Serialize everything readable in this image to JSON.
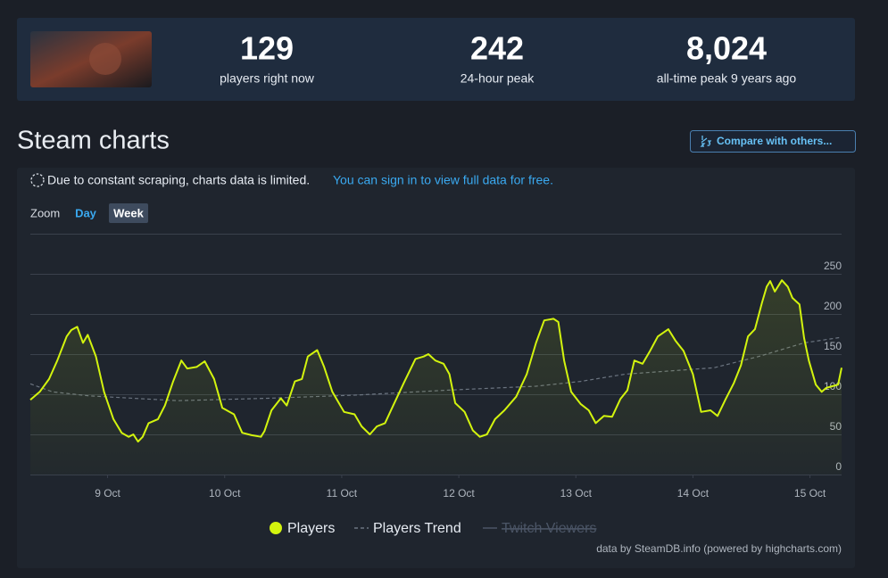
{
  "header": {
    "stats": [
      {
        "value": "129",
        "label": "players right now"
      },
      {
        "value": "242",
        "label": "24-hour peak"
      },
      {
        "value": "8,024",
        "label": "all-time peak 9 years ago"
      }
    ]
  },
  "section_title": "Steam charts",
  "compare_button": "Compare with others...",
  "notice": {
    "text": "Due to constant scraping, charts data is limited.",
    "link": "You can sign in to view full data for free."
  },
  "zoom": {
    "label": "Zoom",
    "options": [
      "Day",
      "Week"
    ],
    "active_index": 1
  },
  "credits": "data by SteamDB.info (powered by highcharts.com)",
  "chart_data": {
    "type": "line",
    "xlim": [
      8.34,
      15.27
    ],
    "ylim": [
      0,
      300
    ],
    "xticks": [
      {
        "value": 9,
        "label": "9 Oct"
      },
      {
        "value": 10,
        "label": "10 Oct"
      },
      {
        "value": 11,
        "label": "11 Oct"
      },
      {
        "value": 12,
        "label": "12 Oct"
      },
      {
        "value": 13,
        "label": "13 Oct"
      },
      {
        "value": 14,
        "label": "14 Oct"
      },
      {
        "value": 15,
        "label": "15 Oct"
      }
    ],
    "yticks": [
      0,
      50,
      100,
      150,
      200,
      250
    ],
    "grid": true,
    "series": [
      {
        "name": "Players",
        "color": "#d3f40e",
        "visible": true,
        "x": [
          8.34,
          8.42,
          8.5,
          8.57,
          8.65,
          8.69,
          8.74,
          8.79,
          8.83,
          8.9,
          8.97,
          9.05,
          9.12,
          9.18,
          9.22,
          9.26,
          9.3,
          9.35,
          9.43,
          9.49,
          9.56,
          9.63,
          9.68,
          9.76,
          9.83,
          9.91,
          9.98,
          10.08,
          10.15,
          10.23,
          10.31,
          10.34,
          10.4,
          10.48,
          10.53,
          10.6,
          10.66,
          10.71,
          10.79,
          10.85,
          10.92,
          11.02,
          11.11,
          11.17,
          11.24,
          11.3,
          11.37,
          11.44,
          11.53,
          11.63,
          11.7,
          11.74,
          11.8,
          11.87,
          11.92,
          11.97,
          12.05,
          12.12,
          12.18,
          12.24,
          12.31,
          12.39,
          12.49,
          12.58,
          12.66,
          12.73,
          12.81,
          12.85,
          12.9,
          12.96,
          13.04,
          13.11,
          13.17,
          13.24,
          13.31,
          13.38,
          13.44,
          13.5,
          13.57,
          13.63,
          13.7,
          13.79,
          13.85,
          13.92,
          14.0,
          14.07,
          14.15,
          14.21,
          14.28,
          14.35,
          14.41,
          14.47,
          14.53,
          14.59,
          14.63,
          14.66,
          14.7,
          14.76,
          14.81,
          14.85,
          14.91,
          14.95,
          14.99,
          15.05,
          15.1,
          15.14,
          15.19,
          15.24,
          15.27
        ],
        "values": [
          93,
          103,
          119,
          142,
          172,
          180,
          184,
          164,
          174,
          147,
          103,
          69,
          52,
          47,
          50,
          41,
          47,
          64,
          69,
          86,
          116,
          142,
          132,
          134,
          141,
          119,
          83,
          75,
          52,
          49,
          47,
          54,
          80,
          95,
          86,
          116,
          119,
          147,
          155,
          134,
          103,
          78,
          75,
          60,
          50,
          60,
          64,
          86,
          114,
          144,
          147,
          150,
          142,
          138,
          125,
          89,
          78,
          55,
          47,
          50,
          69,
          80,
          97,
          125,
          164,
          192,
          194,
          190,
          142,
          103,
          88,
          80,
          64,
          73,
          72,
          94,
          105,
          142,
          138,
          153,
          172,
          181,
          167,
          154,
          125,
          78,
          80,
          73,
          94,
          114,
          136,
          172,
          181,
          214,
          234,
          241,
          228,
          242,
          234,
          220,
          212,
          170,
          142,
          112,
          103,
          108,
          110,
          112,
          133
        ]
      },
      {
        "name": "Players Trend",
        "color": "#6b7480",
        "visible": true,
        "x": [
          8.34,
          8.53,
          8.84,
          9.6,
          10.37,
          11.13,
          11.89,
          12.66,
          13.04,
          13.42,
          13.8,
          14.18,
          14.56,
          14.95,
          15.27
        ],
        "values": [
          113,
          103,
          98,
          92,
          95,
          99,
          105,
          110,
          116,
          125,
          129,
          133,
          147,
          164,
          171
        ]
      },
      {
        "name": "Twitch Viewers",
        "color": "#4b5566",
        "visible": false
      }
    ]
  }
}
